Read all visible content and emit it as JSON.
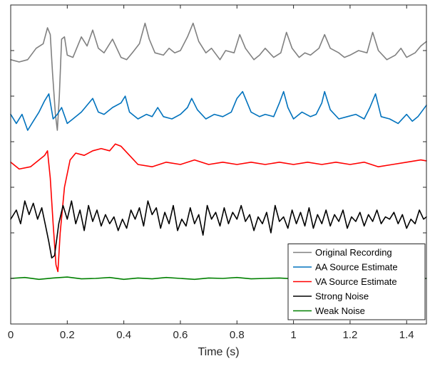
{
  "chart_data": {
    "type": "line",
    "title": "",
    "xlabel": "Time (s)",
    "ylabel": "",
    "xlim": [
      0,
      1.47
    ],
    "ylim": [
      0,
      7
    ],
    "xticks": [
      0,
      0.2,
      0.4,
      0.6,
      0.8,
      1,
      1.2,
      1.4
    ],
    "xtick_labels": [
      "0",
      "0.2",
      "0.4",
      "0.6",
      "0.8",
      "1",
      "1.2",
      "1.4"
    ],
    "yticks": [
      1,
      2,
      3,
      4,
      5,
      6
    ],
    "grid": false,
    "legend_position": "bottom-right",
    "series": [
      {
        "name": "Original Recording",
        "color": "#808080",
        "x": [
          0.0,
          0.03,
          0.06,
          0.09,
          0.115,
          0.13,
          0.14,
          0.148,
          0.158,
          0.165,
          0.172,
          0.18,
          0.19,
          0.2,
          0.22,
          0.25,
          0.27,
          0.29,
          0.31,
          0.33,
          0.36,
          0.39,
          0.41,
          0.43,
          0.455,
          0.475,
          0.49,
          0.51,
          0.54,
          0.56,
          0.58,
          0.6,
          0.625,
          0.645,
          0.665,
          0.69,
          0.71,
          0.74,
          0.76,
          0.79,
          0.81,
          0.83,
          0.86,
          0.88,
          0.9,
          0.93,
          0.955,
          0.975,
          0.995,
          1.02,
          1.04,
          1.06,
          1.09,
          1.11,
          1.13,
          1.16,
          1.18,
          1.2,
          1.23,
          1.26,
          1.28,
          1.3,
          1.33,
          1.36,
          1.38,
          1.4,
          1.43,
          1.45,
          1.47
        ],
        "y": [
          5.8,
          5.75,
          5.8,
          6.05,
          6.15,
          6.5,
          6.35,
          5.5,
          4.6,
          4.25,
          5.0,
          6.25,
          6.3,
          5.9,
          5.85,
          6.3,
          6.1,
          6.45,
          6.05,
          5.95,
          6.25,
          5.85,
          5.8,
          5.95,
          6.15,
          6.6,
          6.25,
          5.95,
          5.9,
          6.05,
          5.95,
          6.0,
          6.3,
          6.6,
          6.2,
          5.95,
          6.05,
          5.8,
          6.0,
          5.95,
          6.35,
          6.05,
          5.8,
          5.9,
          6.05,
          5.85,
          5.95,
          6.4,
          6.05,
          5.85,
          5.95,
          5.9,
          6.05,
          6.35,
          6.05,
          5.95,
          5.85,
          5.9,
          6.0,
          5.95,
          6.4,
          6.0,
          5.8,
          5.9,
          6.05,
          5.85,
          5.95,
          6.1,
          6.2
        ]
      },
      {
        "name": "AA Source Estimate",
        "color": "#0072BD",
        "x": [
          0.0,
          0.02,
          0.04,
          0.06,
          0.08,
          0.1,
          0.12,
          0.135,
          0.15,
          0.165,
          0.18,
          0.2,
          0.22,
          0.25,
          0.27,
          0.29,
          0.31,
          0.33,
          0.36,
          0.39,
          0.405,
          0.42,
          0.45,
          0.48,
          0.5,
          0.52,
          0.54,
          0.57,
          0.6,
          0.625,
          0.64,
          0.66,
          0.69,
          0.72,
          0.75,
          0.78,
          0.8,
          0.82,
          0.85,
          0.88,
          0.9,
          0.93,
          0.95,
          0.965,
          0.98,
          1.0,
          1.03,
          1.06,
          1.08,
          1.1,
          1.11,
          1.13,
          1.16,
          1.19,
          1.22,
          1.25,
          1.27,
          1.29,
          1.31,
          1.34,
          1.37,
          1.4,
          1.42,
          1.44,
          1.47
        ],
        "y": [
          4.6,
          4.4,
          4.6,
          4.25,
          4.45,
          4.65,
          4.9,
          5.05,
          4.5,
          4.6,
          4.75,
          4.4,
          4.5,
          4.65,
          4.8,
          4.95,
          4.65,
          4.6,
          4.75,
          4.85,
          5.0,
          4.65,
          4.5,
          4.6,
          4.55,
          4.75,
          4.55,
          4.5,
          4.6,
          4.75,
          4.95,
          4.7,
          4.5,
          4.6,
          4.55,
          4.65,
          4.95,
          5.1,
          4.65,
          4.55,
          4.6,
          4.55,
          4.85,
          5.1,
          4.75,
          4.5,
          4.65,
          4.55,
          4.6,
          4.85,
          5.1,
          4.7,
          4.5,
          4.55,
          4.6,
          4.5,
          4.75,
          5.05,
          4.55,
          4.5,
          4.4,
          4.6,
          4.45,
          4.55,
          4.8
        ]
      },
      {
        "name": "VA Source Estimate",
        "color": "#FF0000",
        "x": [
          0.0,
          0.03,
          0.07,
          0.1,
          0.12,
          0.13,
          0.14,
          0.15,
          0.16,
          0.167,
          0.175,
          0.19,
          0.21,
          0.23,
          0.26,
          0.29,
          0.32,
          0.35,
          0.37,
          0.39,
          0.42,
          0.45,
          0.5,
          0.55,
          0.6,
          0.65,
          0.7,
          0.75,
          0.8,
          0.85,
          0.9,
          0.95,
          1.0,
          1.05,
          1.1,
          1.15,
          1.2,
          1.25,
          1.3,
          1.35,
          1.4,
          1.45,
          1.47
        ],
        "y": [
          3.55,
          3.4,
          3.45,
          3.6,
          3.7,
          3.8,
          3.2,
          2.2,
          1.3,
          1.15,
          2.0,
          3.0,
          3.6,
          3.75,
          3.7,
          3.8,
          3.85,
          3.8,
          3.95,
          3.9,
          3.7,
          3.5,
          3.45,
          3.55,
          3.5,
          3.6,
          3.5,
          3.55,
          3.5,
          3.55,
          3.5,
          3.55,
          3.5,
          3.55,
          3.5,
          3.55,
          3.5,
          3.55,
          3.45,
          3.5,
          3.55,
          3.6,
          3.58
        ]
      },
      {
        "name": "Strong Noise",
        "color": "#000000",
        "x": [
          0.0,
          0.02,
          0.035,
          0.05,
          0.065,
          0.08,
          0.095,
          0.11,
          0.125,
          0.135,
          0.145,
          0.155,
          0.17,
          0.185,
          0.2,
          0.215,
          0.23,
          0.245,
          0.26,
          0.275,
          0.29,
          0.305,
          0.32,
          0.335,
          0.35,
          0.365,
          0.38,
          0.395,
          0.41,
          0.425,
          0.44,
          0.455,
          0.47,
          0.485,
          0.5,
          0.515,
          0.53,
          0.545,
          0.56,
          0.575,
          0.59,
          0.605,
          0.62,
          0.635,
          0.65,
          0.665,
          0.68,
          0.695,
          0.71,
          0.725,
          0.74,
          0.755,
          0.77,
          0.785,
          0.8,
          0.815,
          0.83,
          0.845,
          0.86,
          0.875,
          0.89,
          0.905,
          0.92,
          0.935,
          0.95,
          0.965,
          0.98,
          0.995,
          1.01,
          1.025,
          1.04,
          1.055,
          1.07,
          1.085,
          1.1,
          1.115,
          1.13,
          1.145,
          1.16,
          1.175,
          1.19,
          1.205,
          1.22,
          1.235,
          1.25,
          1.265,
          1.28,
          1.295,
          1.31,
          1.325,
          1.34,
          1.355,
          1.37,
          1.385,
          1.4,
          1.415,
          1.43,
          1.445,
          1.46,
          1.47
        ],
        "y": [
          2.3,
          2.5,
          2.2,
          2.7,
          2.4,
          2.65,
          2.3,
          2.55,
          2.1,
          1.8,
          1.45,
          1.5,
          2.2,
          2.6,
          2.3,
          2.7,
          2.2,
          2.5,
          2.05,
          2.6,
          2.25,
          2.5,
          2.15,
          2.4,
          2.2,
          2.35,
          2.05,
          2.3,
          2.1,
          2.5,
          2.3,
          2.55,
          2.15,
          2.7,
          2.4,
          2.55,
          2.1,
          2.45,
          2.2,
          2.6,
          2.05,
          2.3,
          2.15,
          2.55,
          2.2,
          2.4,
          1.95,
          2.6,
          2.3,
          2.45,
          2.15,
          2.55,
          2.2,
          2.45,
          2.3,
          2.6,
          2.25,
          2.4,
          2.05,
          2.35,
          2.2,
          2.45,
          2.0,
          2.6,
          2.25,
          2.35,
          2.1,
          2.5,
          2.2,
          2.45,
          2.15,
          2.55,
          2.1,
          2.4,
          2.2,
          2.5,
          2.15,
          2.4,
          2.25,
          2.5,
          2.1,
          2.35,
          2.25,
          2.45,
          2.15,
          2.4,
          2.25,
          2.5,
          2.2,
          2.35,
          2.3,
          2.45,
          2.2,
          2.4,
          2.1,
          2.3,
          2.2,
          2.5,
          2.3,
          2.35
        ]
      },
      {
        "name": "Weak Noise",
        "color": "#008000",
        "x": [
          0.0,
          0.05,
          0.1,
          0.15,
          0.2,
          0.25,
          0.3,
          0.35,
          0.4,
          0.45,
          0.5,
          0.55,
          0.6,
          0.65,
          0.7,
          0.75,
          0.8,
          0.85,
          0.9,
          0.95,
          1.0,
          1.05,
          1.1,
          1.15,
          1.2,
          1.25,
          1.3,
          1.35,
          1.4,
          1.45,
          1.47
        ],
        "y": [
          1.0,
          1.02,
          0.98,
          1.01,
          1.03,
          0.99,
          1.0,
          1.02,
          0.98,
          1.01,
          0.99,
          1.02,
          1.0,
          0.98,
          1.01,
          1.0,
          1.02,
          0.99,
          1.0,
          1.01,
          0.99,
          1.0,
          1.02,
          0.99,
          1.0,
          1.01,
          0.99,
          1.0,
          1.02,
          0.99,
          1.0
        ]
      }
    ]
  }
}
